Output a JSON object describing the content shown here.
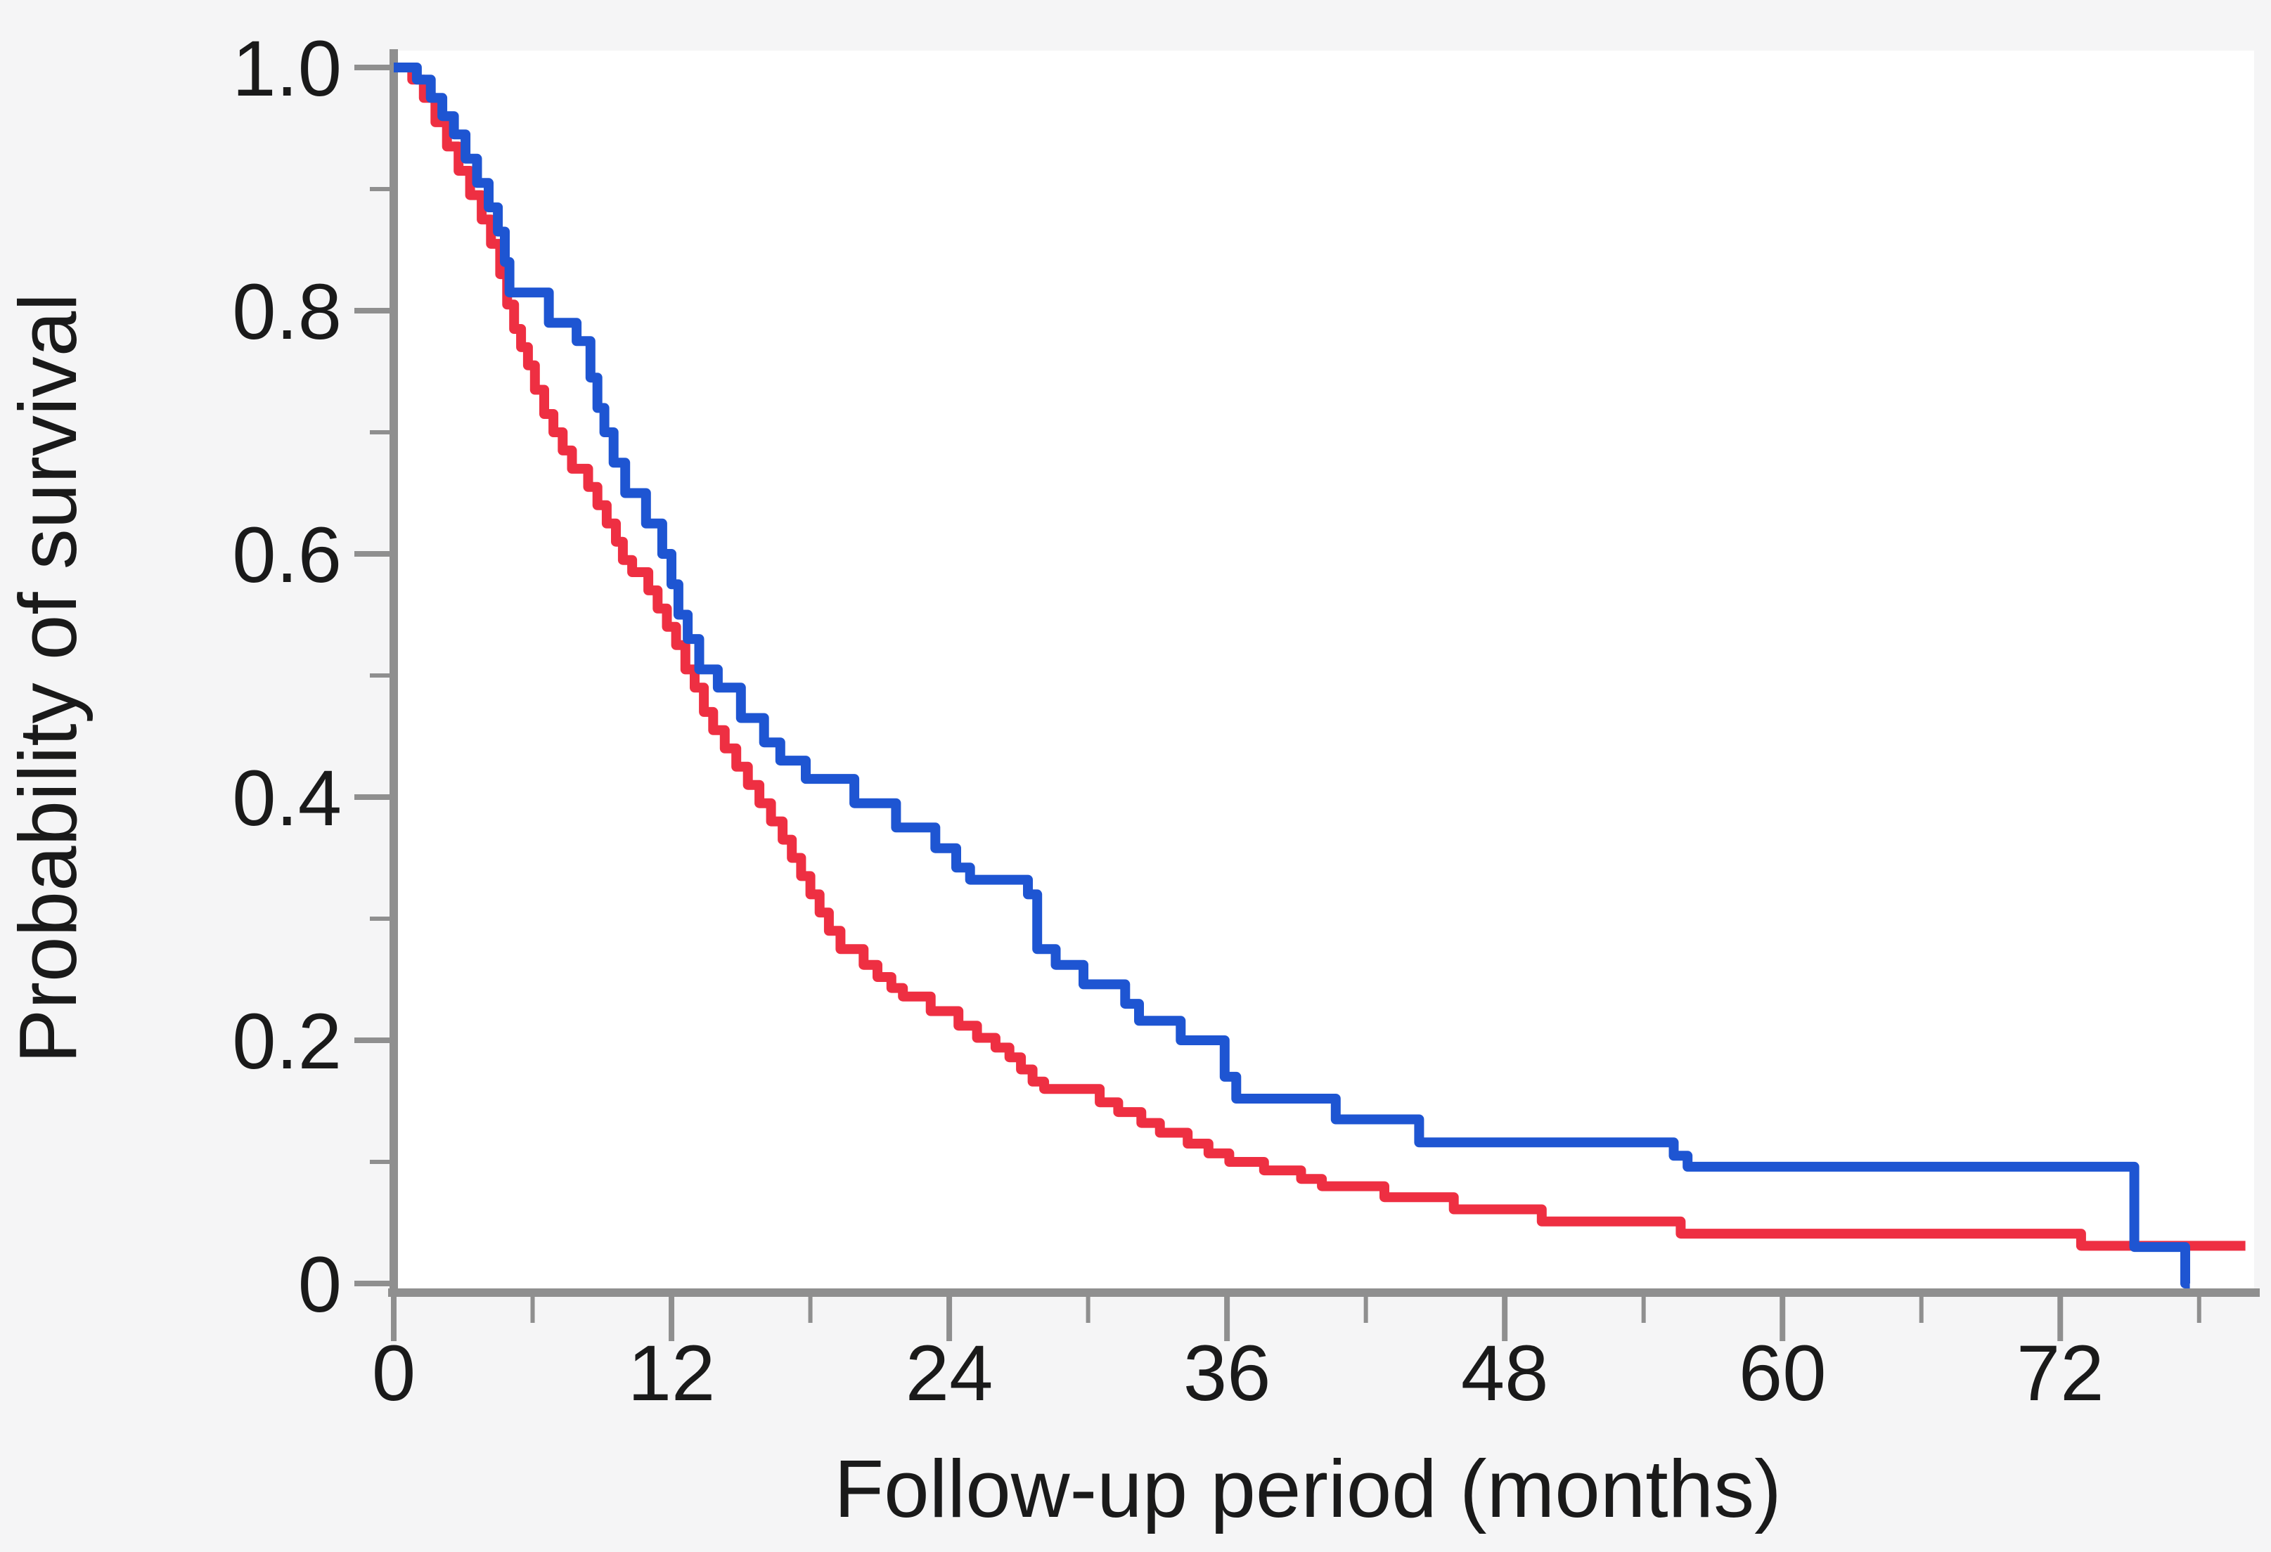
{
  "page": {
    "background": "#f5f5f6",
    "plot_background": "#ffffff",
    "axis_color": "#8f8f8f",
    "text_color": "#1a1a1a"
  },
  "chart_data": {
    "type": "line",
    "subtype": "kaplan-meier-step-curves",
    "title": "",
    "xlabel": "Follow-up period (months)",
    "ylabel": "Probability of survival",
    "xlim": [
      0,
      81
    ],
    "ylim": [
      0,
      1.0
    ],
    "grid": false,
    "legend": "none",
    "x_major_ticks": [
      0,
      12,
      24,
      36,
      48,
      60,
      72
    ],
    "x_major_tick_labels": [
      "0",
      "12",
      "24",
      "36",
      "48",
      "60",
      "72"
    ],
    "x_minor_ticks": [
      6,
      18,
      30,
      42,
      54,
      66,
      78
    ],
    "y_major_ticks": [
      1.0,
      0.8,
      0.6,
      0.4,
      0.2,
      0
    ],
    "y_major_tick_labels": [
      "1.0",
      "0.8",
      "0.6",
      "0.4",
      "0.2",
      "0"
    ],
    "y_minor_ticks": [
      0.9,
      0.7,
      0.5,
      0.3,
      0.1
    ],
    "series": [
      {
        "name": "red-curve",
        "color": "#ee2f42",
        "drops_to_zero": false,
        "end_x": 80.0,
        "steps": [
          [
            0,
            1.0
          ],
          [
            0.8,
            0.99
          ],
          [
            1.3,
            0.975
          ],
          [
            1.8,
            0.955
          ],
          [
            2.3,
            0.935
          ],
          [
            2.8,
            0.915
          ],
          [
            3.3,
            0.895
          ],
          [
            3.8,
            0.875
          ],
          [
            4.2,
            0.855
          ],
          [
            4.6,
            0.83
          ],
          [
            4.9,
            0.805
          ],
          [
            5.2,
            0.785
          ],
          [
            5.5,
            0.77
          ],
          [
            5.8,
            0.755
          ],
          [
            6.1,
            0.735
          ],
          [
            6.5,
            0.715
          ],
          [
            6.9,
            0.7
          ],
          [
            7.3,
            0.685
          ],
          [
            7.7,
            0.67
          ],
          [
            8.4,
            0.655
          ],
          [
            8.8,
            0.64
          ],
          [
            9.2,
            0.625
          ],
          [
            9.6,
            0.61
          ],
          [
            9.9,
            0.595
          ],
          [
            10.3,
            0.585
          ],
          [
            11.0,
            0.57
          ],
          [
            11.4,
            0.555
          ],
          [
            11.8,
            0.54
          ],
          [
            12.2,
            0.525
          ],
          [
            12.6,
            0.505
          ],
          [
            13.0,
            0.49
          ],
          [
            13.4,
            0.47
          ],
          [
            13.8,
            0.455
          ],
          [
            14.3,
            0.44
          ],
          [
            14.8,
            0.425
          ],
          [
            15.3,
            0.41
          ],
          [
            15.8,
            0.395
          ],
          [
            16.3,
            0.38
          ],
          [
            16.8,
            0.365
          ],
          [
            17.2,
            0.35
          ],
          [
            17.6,
            0.335
          ],
          [
            18.0,
            0.32
          ],
          [
            18.4,
            0.305
          ],
          [
            18.8,
            0.29
          ],
          [
            19.3,
            0.275
          ],
          [
            20.3,
            0.262
          ],
          [
            20.9,
            0.252
          ],
          [
            21.5,
            0.243
          ],
          [
            22.0,
            0.236
          ],
          [
            23.2,
            0.224
          ],
          [
            24.4,
            0.212
          ],
          [
            25.2,
            0.202
          ],
          [
            26.0,
            0.194
          ],
          [
            26.6,
            0.186
          ],
          [
            27.1,
            0.176
          ],
          [
            27.6,
            0.166
          ],
          [
            28.1,
            0.16
          ],
          [
            30.5,
            0.149
          ],
          [
            31.3,
            0.141
          ],
          [
            32.3,
            0.132
          ],
          [
            33.1,
            0.124
          ],
          [
            34.3,
            0.115
          ],
          [
            35.2,
            0.107
          ],
          [
            36.1,
            0.1
          ],
          [
            37.6,
            0.093
          ],
          [
            39.2,
            0.086
          ],
          [
            40.1,
            0.08
          ],
          [
            42.8,
            0.071
          ],
          [
            45.8,
            0.061
          ],
          [
            49.6,
            0.051
          ],
          [
            55.6,
            0.041
          ],
          [
            72.9,
            0.031
          ]
        ]
      },
      {
        "name": "blue-curve",
        "color": "#1e55d2",
        "drops_to_zero": true,
        "end_x": 77.6,
        "steps": [
          [
            0,
            1.0
          ],
          [
            1.0,
            0.99
          ],
          [
            1.6,
            0.975
          ],
          [
            2.1,
            0.96
          ],
          [
            2.6,
            0.945
          ],
          [
            3.1,
            0.925
          ],
          [
            3.6,
            0.905
          ],
          [
            4.1,
            0.885
          ],
          [
            4.5,
            0.865
          ],
          [
            4.8,
            0.84
          ],
          [
            5.0,
            0.815
          ],
          [
            6.7,
            0.79
          ],
          [
            7.9,
            0.775
          ],
          [
            8.5,
            0.745
          ],
          [
            8.8,
            0.72
          ],
          [
            9.1,
            0.7
          ],
          [
            9.5,
            0.675
          ],
          [
            10.0,
            0.65
          ],
          [
            10.9,
            0.625
          ],
          [
            11.6,
            0.6
          ],
          [
            12.0,
            0.575
          ],
          [
            12.3,
            0.55
          ],
          [
            12.7,
            0.53
          ],
          [
            13.2,
            0.505
          ],
          [
            14.0,
            0.49
          ],
          [
            15.0,
            0.465
          ],
          [
            16.0,
            0.445
          ],
          [
            16.7,
            0.43
          ],
          [
            17.8,
            0.415
          ],
          [
            19.9,
            0.395
          ],
          [
            21.7,
            0.375
          ],
          [
            23.4,
            0.358
          ],
          [
            24.3,
            0.342
          ],
          [
            24.9,
            0.332
          ],
          [
            27.4,
            0.32
          ],
          [
            27.8,
            0.275
          ],
          [
            28.6,
            0.262
          ],
          [
            29.8,
            0.246
          ],
          [
            31.6,
            0.23
          ],
          [
            32.2,
            0.216
          ],
          [
            34.0,
            0.2
          ],
          [
            35.9,
            0.17
          ],
          [
            36.4,
            0.152
          ],
          [
            40.7,
            0.135
          ],
          [
            44.3,
            0.116
          ],
          [
            55.3,
            0.105
          ],
          [
            55.9,
            0.096
          ],
          [
            75.2,
            0.03
          ],
          [
            77.4,
            0.0
          ]
        ]
      }
    ]
  }
}
